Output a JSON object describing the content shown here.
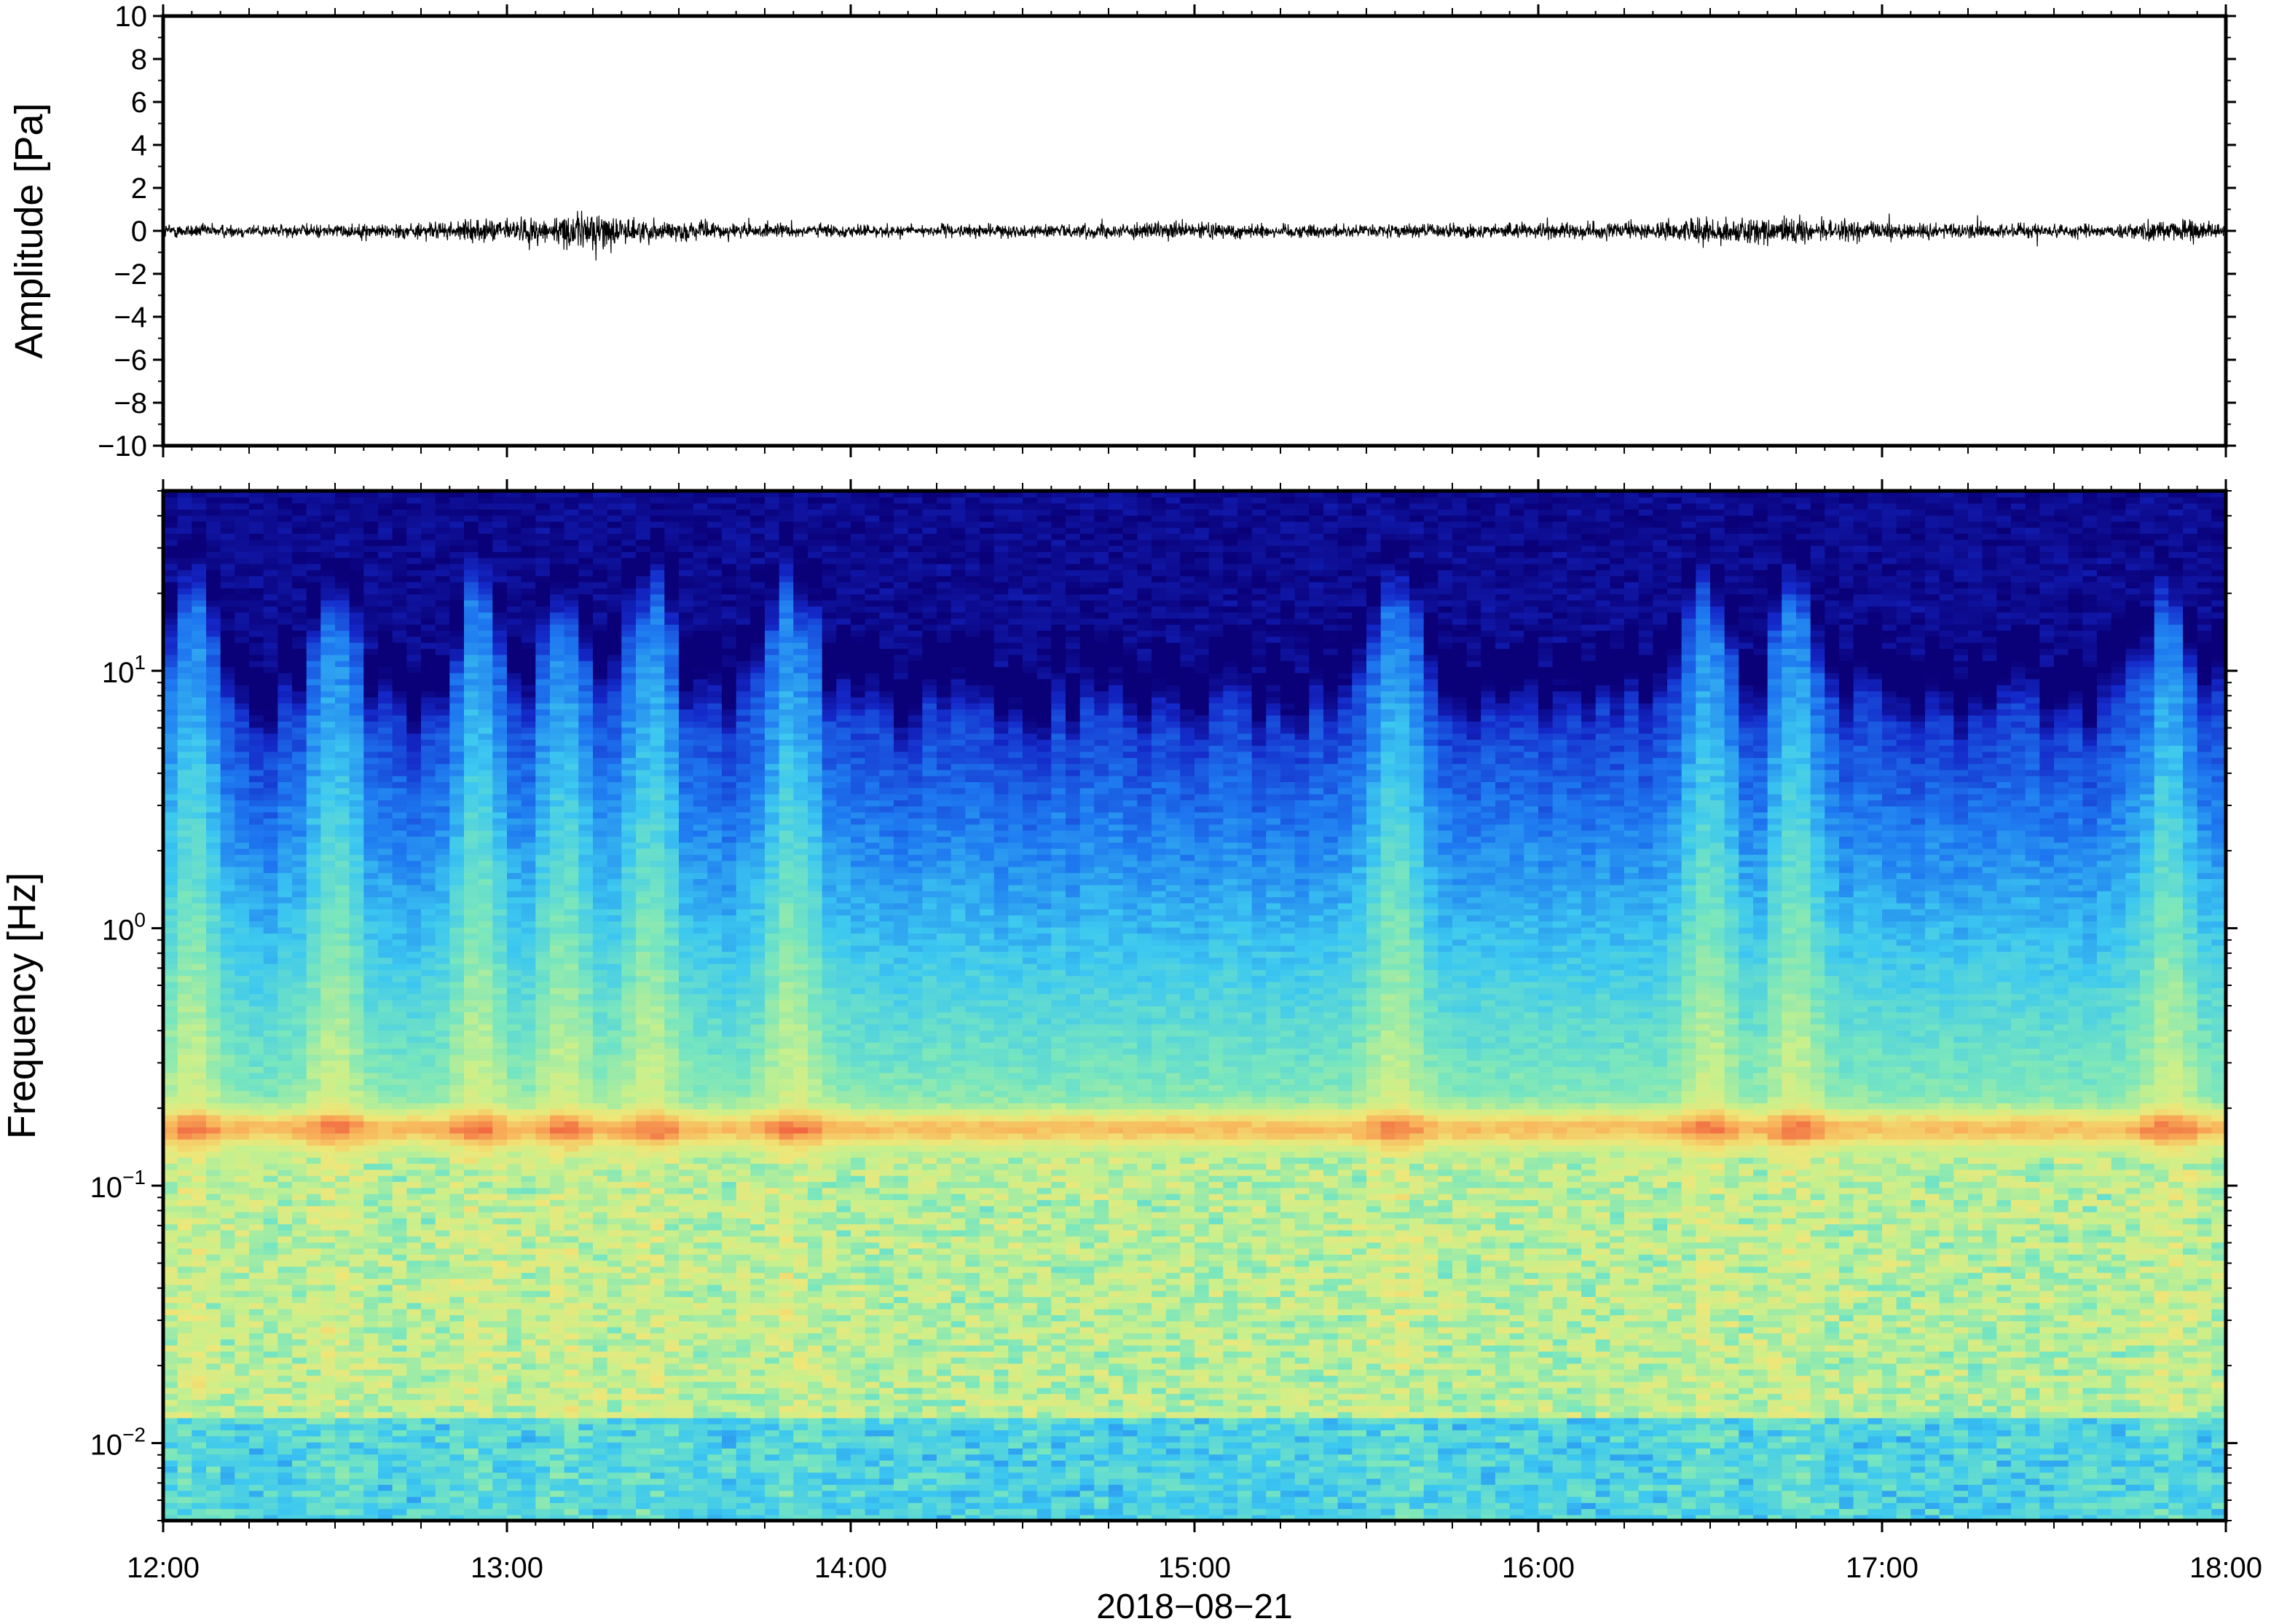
{
  "chart_data": [
    {
      "type": "line",
      "panel": "waveform",
      "ylabel": "Amplitude [Pa]",
      "xlim": [
        "12:00",
        "18:00"
      ],
      "ylim": [
        -10,
        10
      ],
      "yticks": [
        10,
        8,
        6,
        4,
        2,
        0,
        -2,
        -4,
        -6,
        -8,
        -10
      ],
      "ytick_labels": [
        "10",
        "8",
        "6",
        "4",
        "2",
        "0",
        "−2",
        "−4",
        "−6",
        "−8",
        "−10"
      ],
      "grid": false,
      "series": [
        {
          "color": "#000000",
          "envelope": {
            "time": [
              "12:00",
              "12:20",
              "12:40",
              "12:50",
              "13:00",
              "13:10",
              "13:15",
              "13:20",
              "13:40",
              "14:00",
              "14:30",
              "14:50",
              "15:00",
              "15:10",
              "15:30",
              "15:50",
              "16:00",
              "16:20",
              "16:30",
              "16:45",
              "17:00",
              "17:20",
              "17:40",
              "17:55",
              "18:00"
            ],
            "amplitude": [
              0.3,
              0.25,
              0.3,
              0.35,
              0.5,
              0.6,
              0.9,
              0.5,
              0.3,
              0.25,
              0.25,
              0.3,
              0.35,
              0.3,
              0.25,
              0.3,
              0.3,
              0.35,
              0.55,
              0.5,
              0.35,
              0.3,
              0.3,
              0.45,
              0.3
            ]
          }
        }
      ]
    },
    {
      "type": "heatmap",
      "panel": "spectrogram",
      "xlabel": "2018−08−21",
      "ylabel": "Frequency [Hz]",
      "xlim": [
        "12:00",
        "18:00"
      ],
      "xticks": [
        "12:00",
        "13:00",
        "14:00",
        "15:00",
        "16:00",
        "17:00",
        "18:00"
      ],
      "ylim": [
        0.005,
        50
      ],
      "yscale": "log",
      "yticks": [
        0.01,
        0.1,
        1,
        10
      ],
      "ytick_labels": [
        {
          "base": "10",
          "exp": "−2"
        },
        {
          "base": "10",
          "exp": "−1"
        },
        {
          "base": "10",
          "exp": "0"
        },
        {
          "base": "10",
          "exp": "1"
        }
      ],
      "colormap": [
        "#0a0078",
        "#1428c8",
        "#1e78f0",
        "#3cc8f0",
        "#78e6be",
        "#c8f08c",
        "#f0e678",
        "#f8b45a",
        "#f06440"
      ],
      "features": {
        "microbarom_band_hz": [
          0.14,
          0.2
        ],
        "high_frequency_cutoff_hz": 12,
        "strong_columns": [
          "12:05",
          "12:30",
          "12:55",
          "13:10",
          "13:25",
          "13:50",
          "15:35",
          "16:30",
          "16:45",
          "17:50"
        ]
      }
    }
  ]
}
